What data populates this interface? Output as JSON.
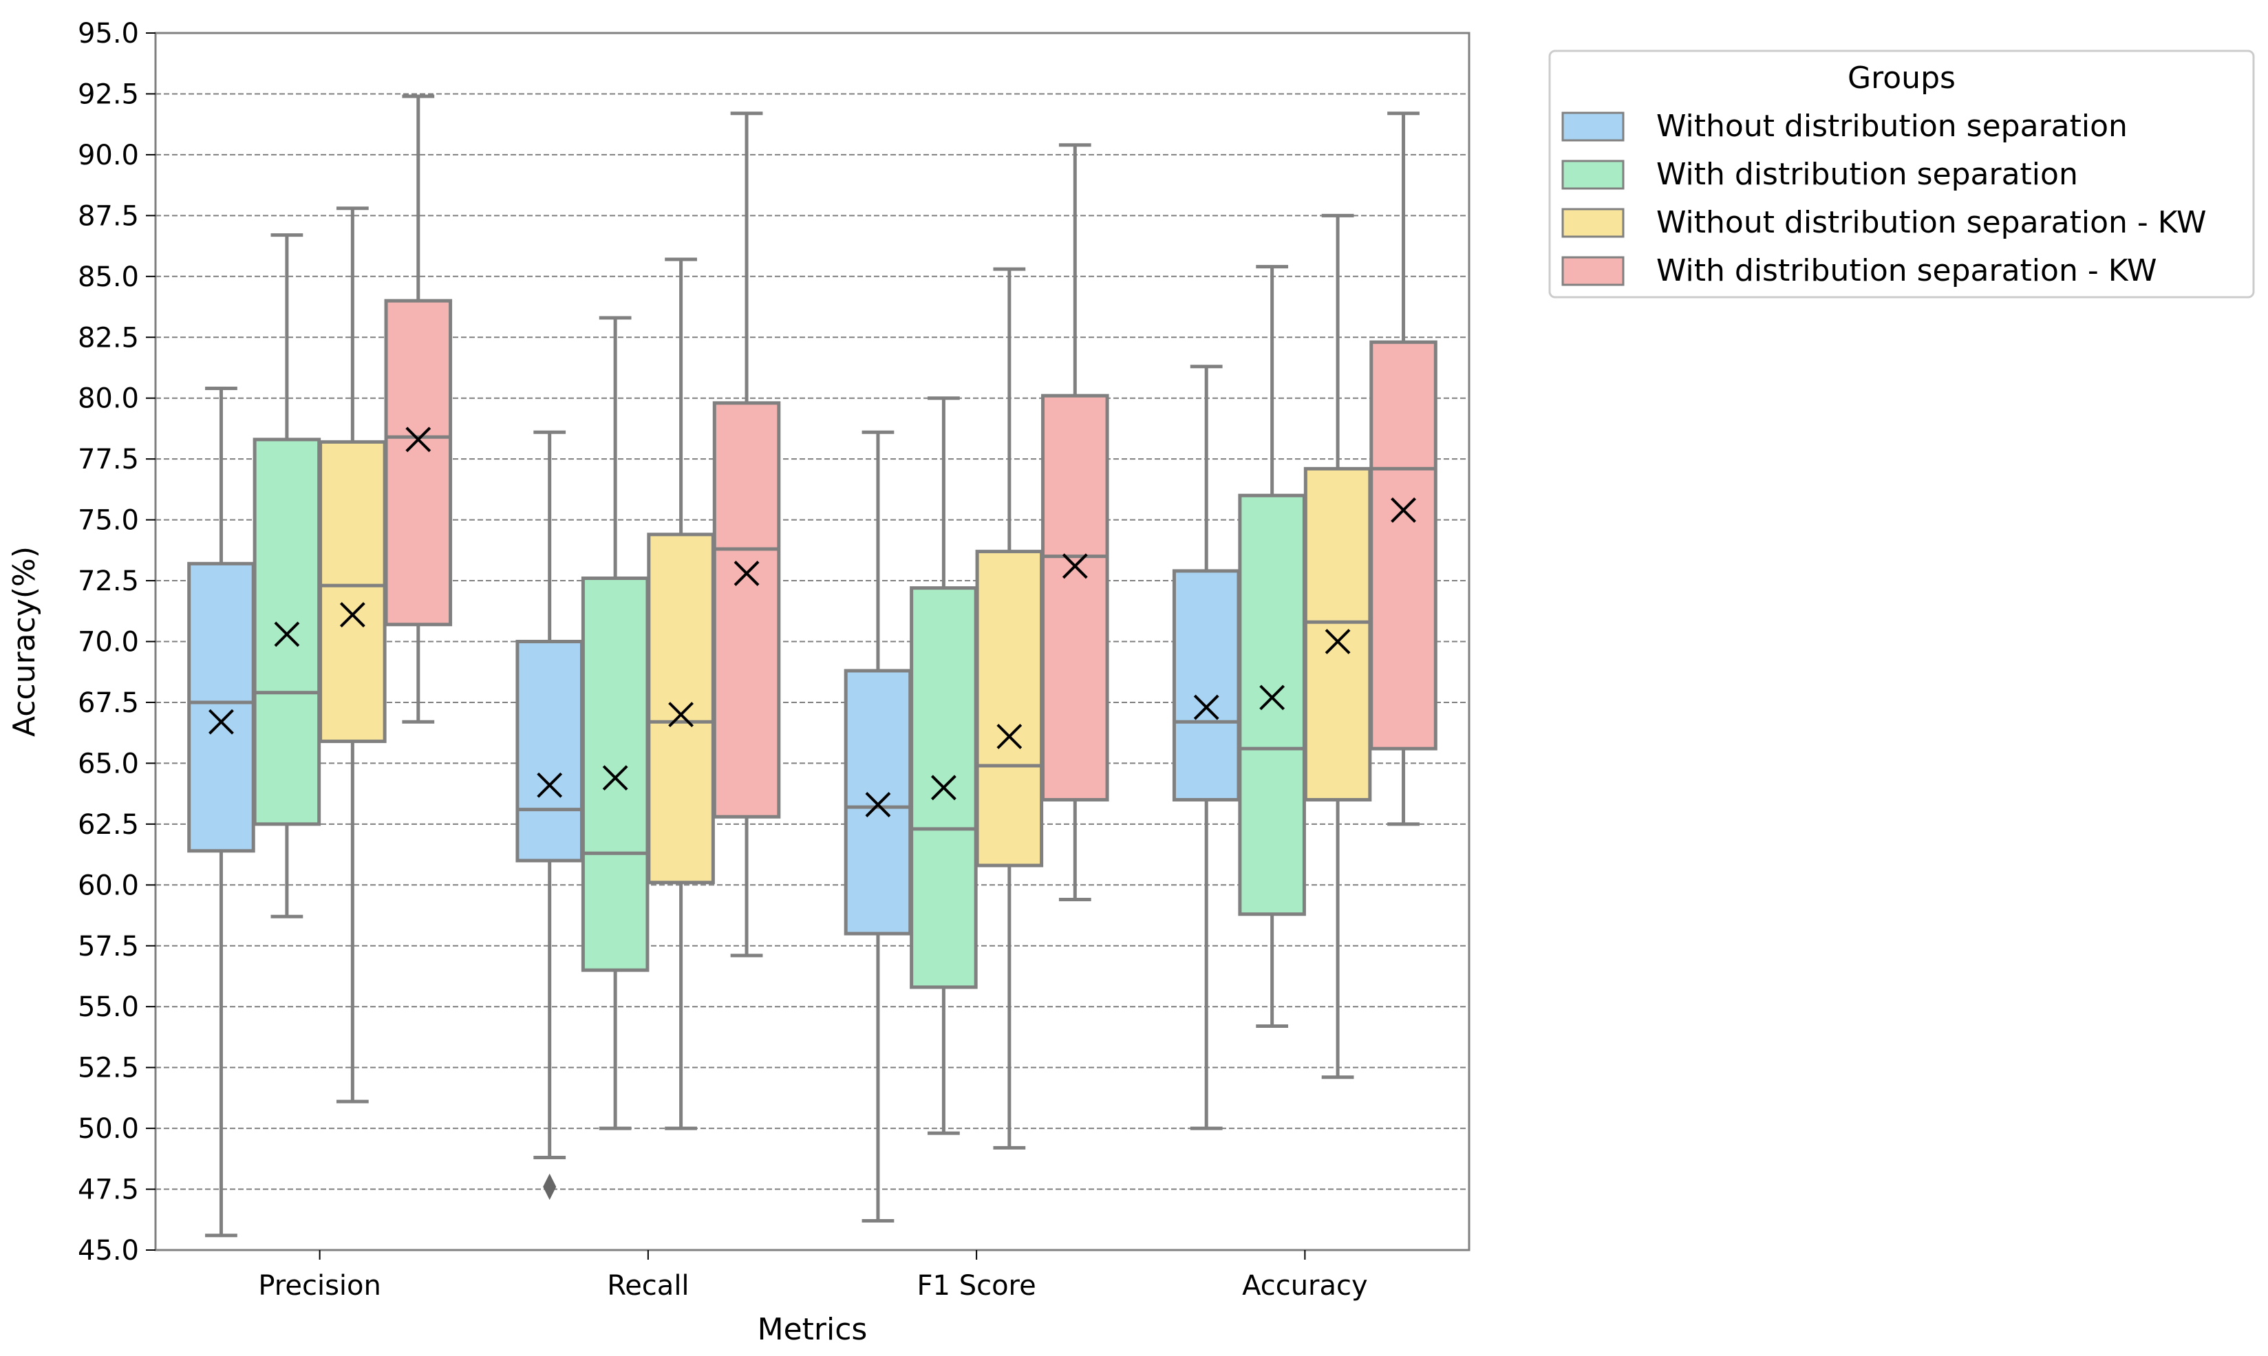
{
  "chart_data": {
    "type": "box",
    "title": "",
    "xlabel": "Metrics",
    "ylabel": "Accuracy(%)",
    "ylim": [
      45.0,
      95.0
    ],
    "yticks": [
      "45.0",
      "47.5",
      "50.0",
      "52.5",
      "55.0",
      "57.5",
      "60.0",
      "62.5",
      "65.0",
      "67.5",
      "70.0",
      "72.5",
      "75.0",
      "77.5",
      "80.0",
      "82.5",
      "85.0",
      "87.5",
      "90.0",
      "92.5",
      "95.0"
    ],
    "grid": "horizontal dashed",
    "categories": [
      "Precision",
      "Recall",
      "F1 Score",
      "Accuracy"
    ],
    "legend": {
      "title": "Groups",
      "placement": "outside right, top"
    },
    "mean_marker": "x",
    "series": [
      {
        "name": "Without distribution separation",
        "color": "#a9d3f2",
        "boxes": [
          {
            "whisker_low": 45.6,
            "q1": 61.4,
            "median": 67.5,
            "q3": 73.2,
            "whisker_high": 80.4,
            "mean": 66.7,
            "outliers": []
          },
          {
            "whisker_low": 48.8,
            "q1": 61.0,
            "median": 63.1,
            "q3": 70.0,
            "whisker_high": 78.6,
            "mean": 64.1,
            "outliers": [
              47.6
            ]
          },
          {
            "whisker_low": 46.2,
            "q1": 58.0,
            "median": 63.2,
            "q3": 68.8,
            "whisker_high": 78.6,
            "mean": 63.3,
            "outliers": []
          },
          {
            "whisker_low": 50.0,
            "q1": 63.5,
            "median": 66.7,
            "q3": 72.9,
            "whisker_high": 81.3,
            "mean": 67.3,
            "outliers": []
          }
        ]
      },
      {
        "name": "With distribution separation",
        "color": "#a8ebc5",
        "boxes": [
          {
            "whisker_low": 58.7,
            "q1": 62.5,
            "median": 67.9,
            "q3": 78.3,
            "whisker_high": 86.7,
            "mean": 70.3,
            "outliers": []
          },
          {
            "whisker_low": 50.0,
            "q1": 56.5,
            "median": 61.3,
            "q3": 72.6,
            "whisker_high": 83.3,
            "mean": 64.4,
            "outliers": []
          },
          {
            "whisker_low": 49.8,
            "q1": 55.8,
            "median": 62.3,
            "q3": 72.2,
            "whisker_high": 80.0,
            "mean": 64.0,
            "outliers": []
          },
          {
            "whisker_low": 54.2,
            "q1": 58.8,
            "median": 65.6,
            "q3": 76.0,
            "whisker_high": 85.4,
            "mean": 67.7,
            "outliers": []
          }
        ]
      },
      {
        "name": "Without distribution separation - KW",
        "color": "#f8e49a",
        "boxes": [
          {
            "whisker_low": 51.1,
            "q1": 65.9,
            "median": 72.3,
            "q3": 78.2,
            "whisker_high": 87.8,
            "mean": 71.1,
            "outliers": []
          },
          {
            "whisker_low": 50.0,
            "q1": 60.1,
            "median": 66.7,
            "q3": 74.4,
            "whisker_high": 85.7,
            "mean": 67.0,
            "outliers": []
          },
          {
            "whisker_low": 49.2,
            "q1": 60.8,
            "median": 64.9,
            "q3": 73.7,
            "whisker_high": 85.3,
            "mean": 66.1,
            "outliers": []
          },
          {
            "whisker_low": 52.1,
            "q1": 63.5,
            "median": 70.8,
            "q3": 77.1,
            "whisker_high": 87.5,
            "mean": 70.0,
            "outliers": []
          }
        ]
      },
      {
        "name": "With distribution separation - KW",
        "color": "#f5b4b1",
        "boxes": [
          {
            "whisker_low": 66.7,
            "q1": 70.7,
            "median": 78.4,
            "q3": 84.0,
            "whisker_high": 92.4,
            "mean": 78.3,
            "outliers": []
          },
          {
            "whisker_low": 57.1,
            "q1": 62.8,
            "median": 73.8,
            "q3": 79.8,
            "whisker_high": 91.7,
            "mean": 72.8,
            "outliers": []
          },
          {
            "whisker_low": 59.4,
            "q1": 63.5,
            "median": 73.5,
            "q3": 80.1,
            "whisker_high": 90.4,
            "mean": 73.1,
            "outliers": []
          },
          {
            "whisker_low": 62.5,
            "q1": 65.6,
            "median": 77.1,
            "q3": 82.3,
            "whisker_high": 91.7,
            "mean": 75.4,
            "outliers": []
          }
        ]
      }
    ]
  }
}
